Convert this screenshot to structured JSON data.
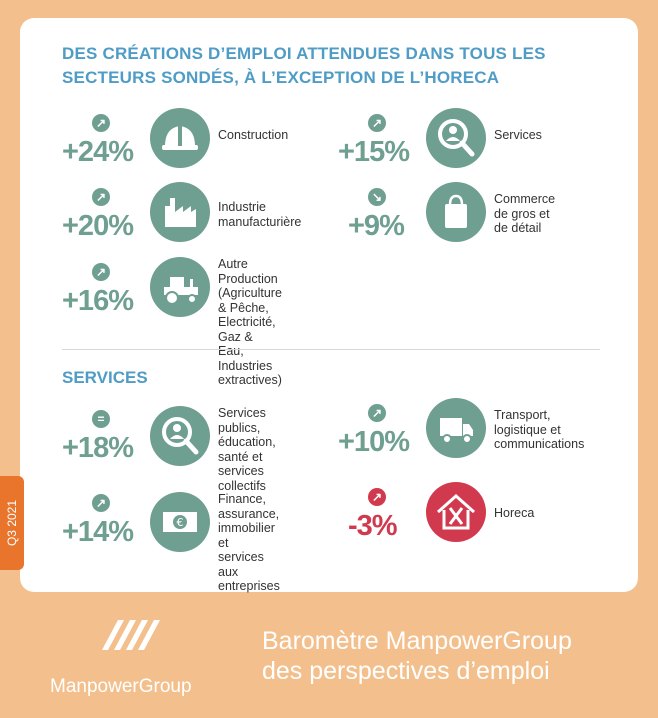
{
  "title": "DES CRÉATIONS D’EMPLOI ATTENDUES DANS TOUS LES SECTEURS SONDÉS, À L’EXCEPTION DE L’HORECA",
  "section2_title": "SERVICES",
  "side_tag": "Q3 2021",
  "colors": {
    "green": "#6f9f91",
    "red": "#d13a4e",
    "blue": "#4f9cc6",
    "orange": "#e9742b",
    "background": "#f3c08d"
  },
  "sectors": [
    {
      "pct": "+24%",
      "label": "Construction",
      "arrow": "up",
      "icon": "hard-hat-icon"
    },
    {
      "pct": "+15%",
      "label": "Services",
      "arrow": "up",
      "icon": "magnifier-person-icon"
    },
    {
      "pct": "+20%",
      "label": "Industrie\nmanufacturière",
      "arrow": "up",
      "icon": "factory-icon"
    },
    {
      "pct": "+9%",
      "label": "Commerce\nde gros et\nde détail",
      "arrow": "down",
      "icon": "shopping-bag-icon"
    },
    {
      "pct": "+16%",
      "label": "Autre Production\n(Agriculture & Pêche,\nElectricité, Gaz &\nEau, Industries\nextractives)",
      "arrow": "up",
      "icon": "tractor-icon"
    }
  ],
  "services": [
    {
      "pct": "+18%",
      "label": "Services publics,\néducation,\nsanté et services\ncollectifs",
      "arrow": "equal",
      "icon": "magnifier-person-icon"
    },
    {
      "pct": "+10%",
      "label": "Transport,\nlogistique et\ncommunications",
      "arrow": "up",
      "icon": "truck-icon"
    },
    {
      "pct": "+14%",
      "label": "Finance, assurance,\nimmobilier et\nservices aux\nentreprises",
      "arrow": "up",
      "icon": "euro-banknote-icon"
    },
    {
      "pct": "-3%",
      "label": "Horeca",
      "arrow": "up",
      "icon": "restaurant-house-icon"
    }
  ],
  "footer": {
    "brand": "ManpowerGroup",
    "text": "Baromètre ManpowerGroup\ndes perspectives d’emploi"
  }
}
